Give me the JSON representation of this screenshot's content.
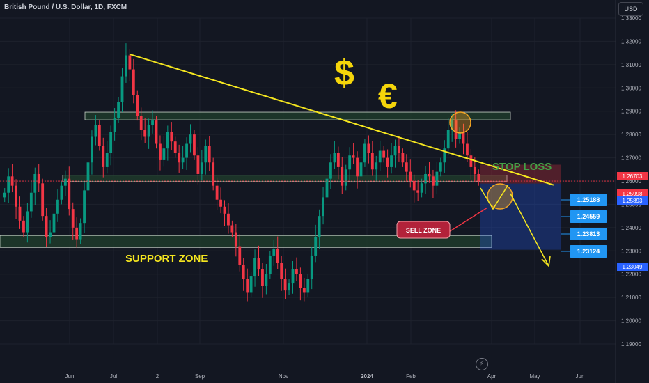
{
  "header": {
    "symbol_title": "British Pound / U.S. Dollar, 1D, FXCM",
    "currency_button": "USD"
  },
  "chart_data": {
    "type": "candlestick",
    "y_axis": {
      "range": [
        1.19,
        1.33
      ],
      "ticks": [
        "1.33000",
        "1.32000",
        "1.31000",
        "1.30000",
        "1.29000",
        "1.28000",
        "1.27000",
        "1.26000",
        "1.25000",
        "1.24000",
        "1.23000",
        "1.22000",
        "1.21000",
        "1.20000",
        "1.19000"
      ]
    },
    "x_axis": {
      "ticks": [
        "Jun",
        "Jul",
        "2",
        "Sep",
        "Nov",
        "2024",
        "Feb",
        "Apr",
        "May",
        "Jun"
      ]
    },
    "price_labels": [
      {
        "text": "1.26703",
        "value": 1.26703,
        "color": "#f23645"
      },
      {
        "text": "1.25998",
        "value": 1.25998,
        "color": "#f23645"
      },
      {
        "text": "1.25893",
        "value": 1.25893,
        "color": "#2962ff"
      },
      {
        "text": "1.23049",
        "value": 1.23049,
        "color": "#2962ff"
      }
    ],
    "target_labels": [
      {
        "text": "1.25188",
        "value": 1.25188
      },
      {
        "text": "1.24559",
        "value": 1.24559
      },
      {
        "text": "1.23813",
        "value": 1.23813
      },
      {
        "text": "1.23124",
        "value": 1.23124
      }
    ],
    "annotations": {
      "stop_loss": "STOP LOSS",
      "sell_zone": "SELL ZONE",
      "support_zone": "SUPPORT ZONE",
      "dollar_symbol": "$",
      "euro_symbol": "€"
    },
    "zones": [
      {
        "name": "upper-resistance",
        "top": 1.2896,
        "bottom": 1.2863
      },
      {
        "name": "middle-zone",
        "top": 1.2625,
        "bottom": 1.2597
      },
      {
        "name": "support",
        "top": 1.2366,
        "bottom": 1.2315
      }
    ],
    "position": {
      "entry": 1.25893,
      "stop": 1.26703,
      "target": 1.23049
    },
    "trend_line": {
      "start": 1.3145,
      "end": 1.2583
    },
    "colors": {
      "bull": "#089981",
      "bear": "#f23645",
      "accent": "#f5e61f",
      "zone": "#1e3a2a",
      "target_bg": "#2962ff"
    },
    "price_series": [
      1.255,
      1.262,
      1.258,
      1.249,
      1.243,
      1.238,
      1.247,
      1.255,
      1.263,
      1.259,
      1.245,
      1.236,
      1.238,
      1.246,
      1.252,
      1.258,
      1.261,
      1.248,
      1.24,
      1.235,
      1.242,
      1.256,
      1.268,
      1.279,
      1.284,
      1.275,
      1.266,
      1.272,
      1.281,
      1.287,
      1.294,
      1.305,
      1.314,
      1.308,
      1.297,
      1.288,
      1.282,
      1.279,
      1.284,
      1.286,
      1.276,
      1.269,
      1.274,
      1.281,
      1.277,
      1.272,
      1.268,
      1.27,
      1.276,
      1.28,
      1.271,
      1.263,
      1.268,
      1.275,
      1.268,
      1.258,
      1.252,
      1.249,
      1.246,
      1.241,
      1.238,
      1.232,
      1.224,
      1.218,
      1.212,
      1.219,
      1.227,
      1.222,
      1.215,
      1.22,
      1.228,
      1.231,
      1.225,
      1.218,
      1.213,
      1.216,
      1.222,
      1.22,
      1.214,
      1.212,
      1.218,
      1.228,
      1.236,
      1.245,
      1.253,
      1.261,
      1.268,
      1.272,
      1.266,
      1.258,
      1.265,
      1.271,
      1.27,
      1.262,
      1.268,
      1.276,
      1.272,
      1.265,
      1.268,
      1.273,
      1.27,
      1.266,
      1.271,
      1.275,
      1.272,
      1.268,
      1.264,
      1.26,
      1.256,
      1.255,
      1.259,
      1.263,
      1.262,
      1.258,
      1.264,
      1.268,
      1.274,
      1.282,
      1.286,
      1.278,
      1.281,
      1.276,
      1.271,
      1.266,
      1.263,
      1.26
    ]
  }
}
